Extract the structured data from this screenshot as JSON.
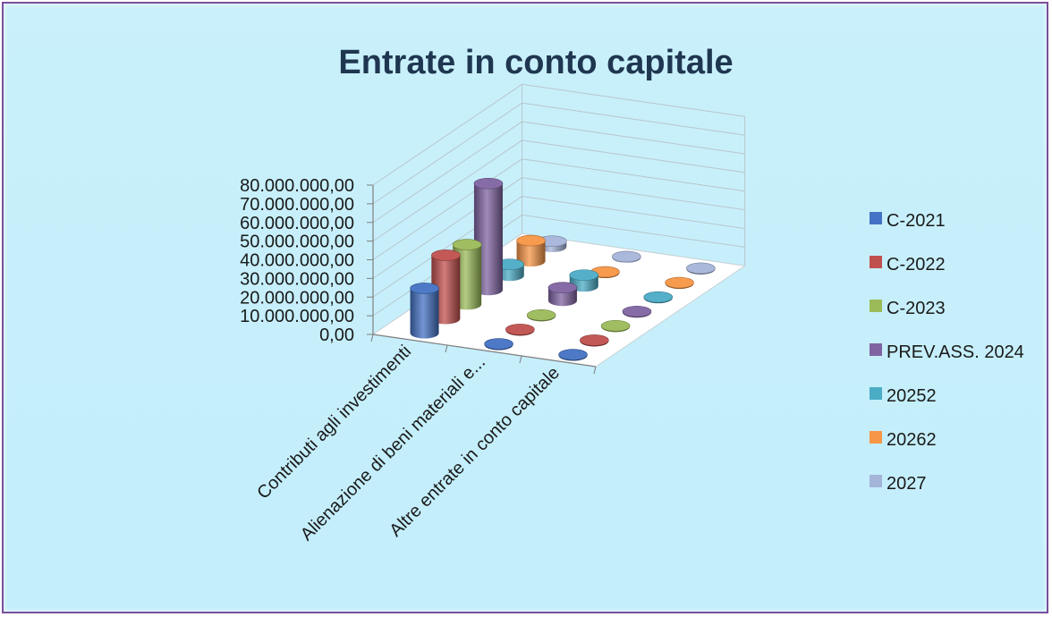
{
  "chart_data": {
    "type": "bar",
    "style": "3d-cylinder",
    "title": "Entrate in conto capitale",
    "categories": [
      "Contributi agli investimenti",
      "Alienazione di beni materiali e...",
      "Altre entrate in conto capitale"
    ],
    "yticks": [
      "0,00",
      "10.000.000,00",
      "20.000.000,00",
      "30.000.000,00",
      "40.000.000,00",
      "50.000.000,00",
      "60.000.000,00",
      "70.000.000,00",
      "80.000.000,00"
    ],
    "ylim": [
      0,
      80000000
    ],
    "legend_position": "right",
    "series": [
      {
        "name": "C-2021",
        "color": "#4472c4",
        "values": [
          24000000,
          0,
          0
        ]
      },
      {
        "name": "C-2022",
        "color": "#c0504d",
        "values": [
          34000000,
          0,
          0
        ]
      },
      {
        "name": "C-2023",
        "color": "#9bbb59",
        "values": [
          32000000,
          0,
          0
        ]
      },
      {
        "name": "PREV.ASS. 2024",
        "color": "#8064a2",
        "values": [
          57000000,
          7000000,
          0
        ]
      },
      {
        "name": "20252",
        "color": "#4bacc6",
        "values": [
          6000000,
          6000000,
          0
        ]
      },
      {
        "name": "20262",
        "color": "#f79646",
        "values": [
          11000000,
          0,
          0
        ]
      },
      {
        "name": "2027",
        "color": "#a5b4d9",
        "values": [
          3000000,
          500000,
          0
        ]
      }
    ]
  }
}
